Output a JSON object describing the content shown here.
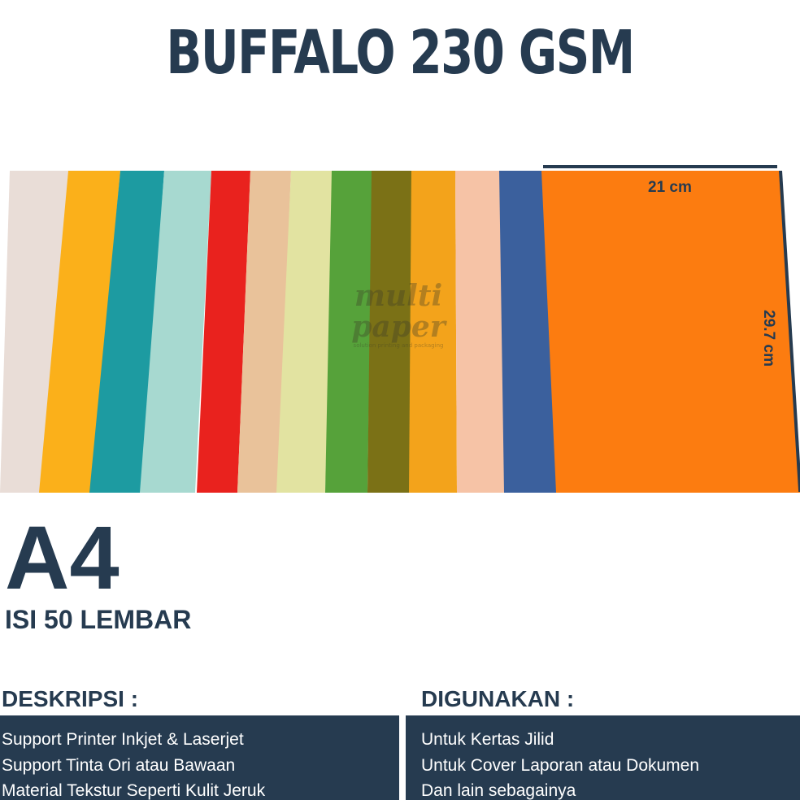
{
  "title": "BUFFALO 230 GSM",
  "colors": [
    "#e9ddd7",
    "#fbb01a",
    "#1d9ba1",
    "#a7d9d0",
    "#e9221e",
    "#e9c29a",
    "#e2e3a1",
    "#56a23a",
    "#7b7116",
    "#f3a31b",
    "#f6c3a6",
    "#3b609d",
    "#fc7c10"
  ],
  "dimensions": {
    "width": "21 cm",
    "height": "29.7 cm"
  },
  "watermark": {
    "line1": "multi",
    "line2": "paper",
    "tagline": "solution printing and packaging"
  },
  "size": "A4",
  "quantity": "ISI 50 LEMBAR",
  "deskripsi": {
    "heading": "DESKRIPSI :",
    "items": [
      "Support Printer Inkjet & Laserjet",
      "Support Tinta Ori atau Bawaan",
      "Material Tekstur Seperti Kulit Jeruk"
    ]
  },
  "digunakan": {
    "heading": "DIGUNAKAN :",
    "items": [
      "Untuk Kertas Jilid",
      "Untuk Cover Laporan atau Dokumen",
      "Dan lain sebagainya"
    ]
  }
}
